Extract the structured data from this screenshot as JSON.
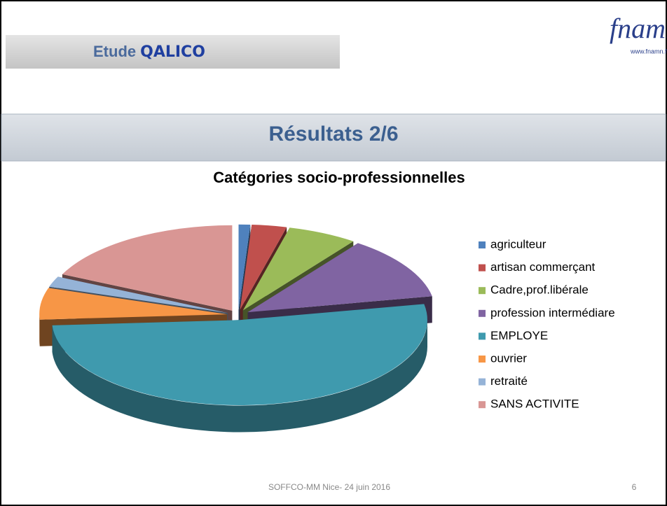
{
  "header": {
    "title_prefix": "Etude",
    "title_emphasis": "QALICO"
  },
  "logo": {
    "text": "fnamn",
    "url": "www.fnamn.fr"
  },
  "section_title": "Résultats 2/6",
  "chart_data": {
    "type": "pie",
    "title": "Catégories socio-professionnelles",
    "categories": [
      "agriculteur",
      "artisan commerçant",
      "Cadre,prof.libérale",
      "profession intermédiare",
      "EMPLOYE",
      "ouvrier",
      "retraité",
      "SANS ACTIVITE"
    ],
    "values": [
      1,
      3,
      6,
      12,
      52,
      6,
      2,
      18
    ],
    "colors": [
      "#4f81bd",
      "#c0504d",
      "#9bbb59",
      "#8064a2",
      "#3f9aae",
      "#f79646",
      "#95b3d7",
      "#d99694"
    ],
    "legend": "right"
  },
  "footer": {
    "text": "SOFFCO-MM Nice- 24 juin 2016",
    "page": "6"
  }
}
